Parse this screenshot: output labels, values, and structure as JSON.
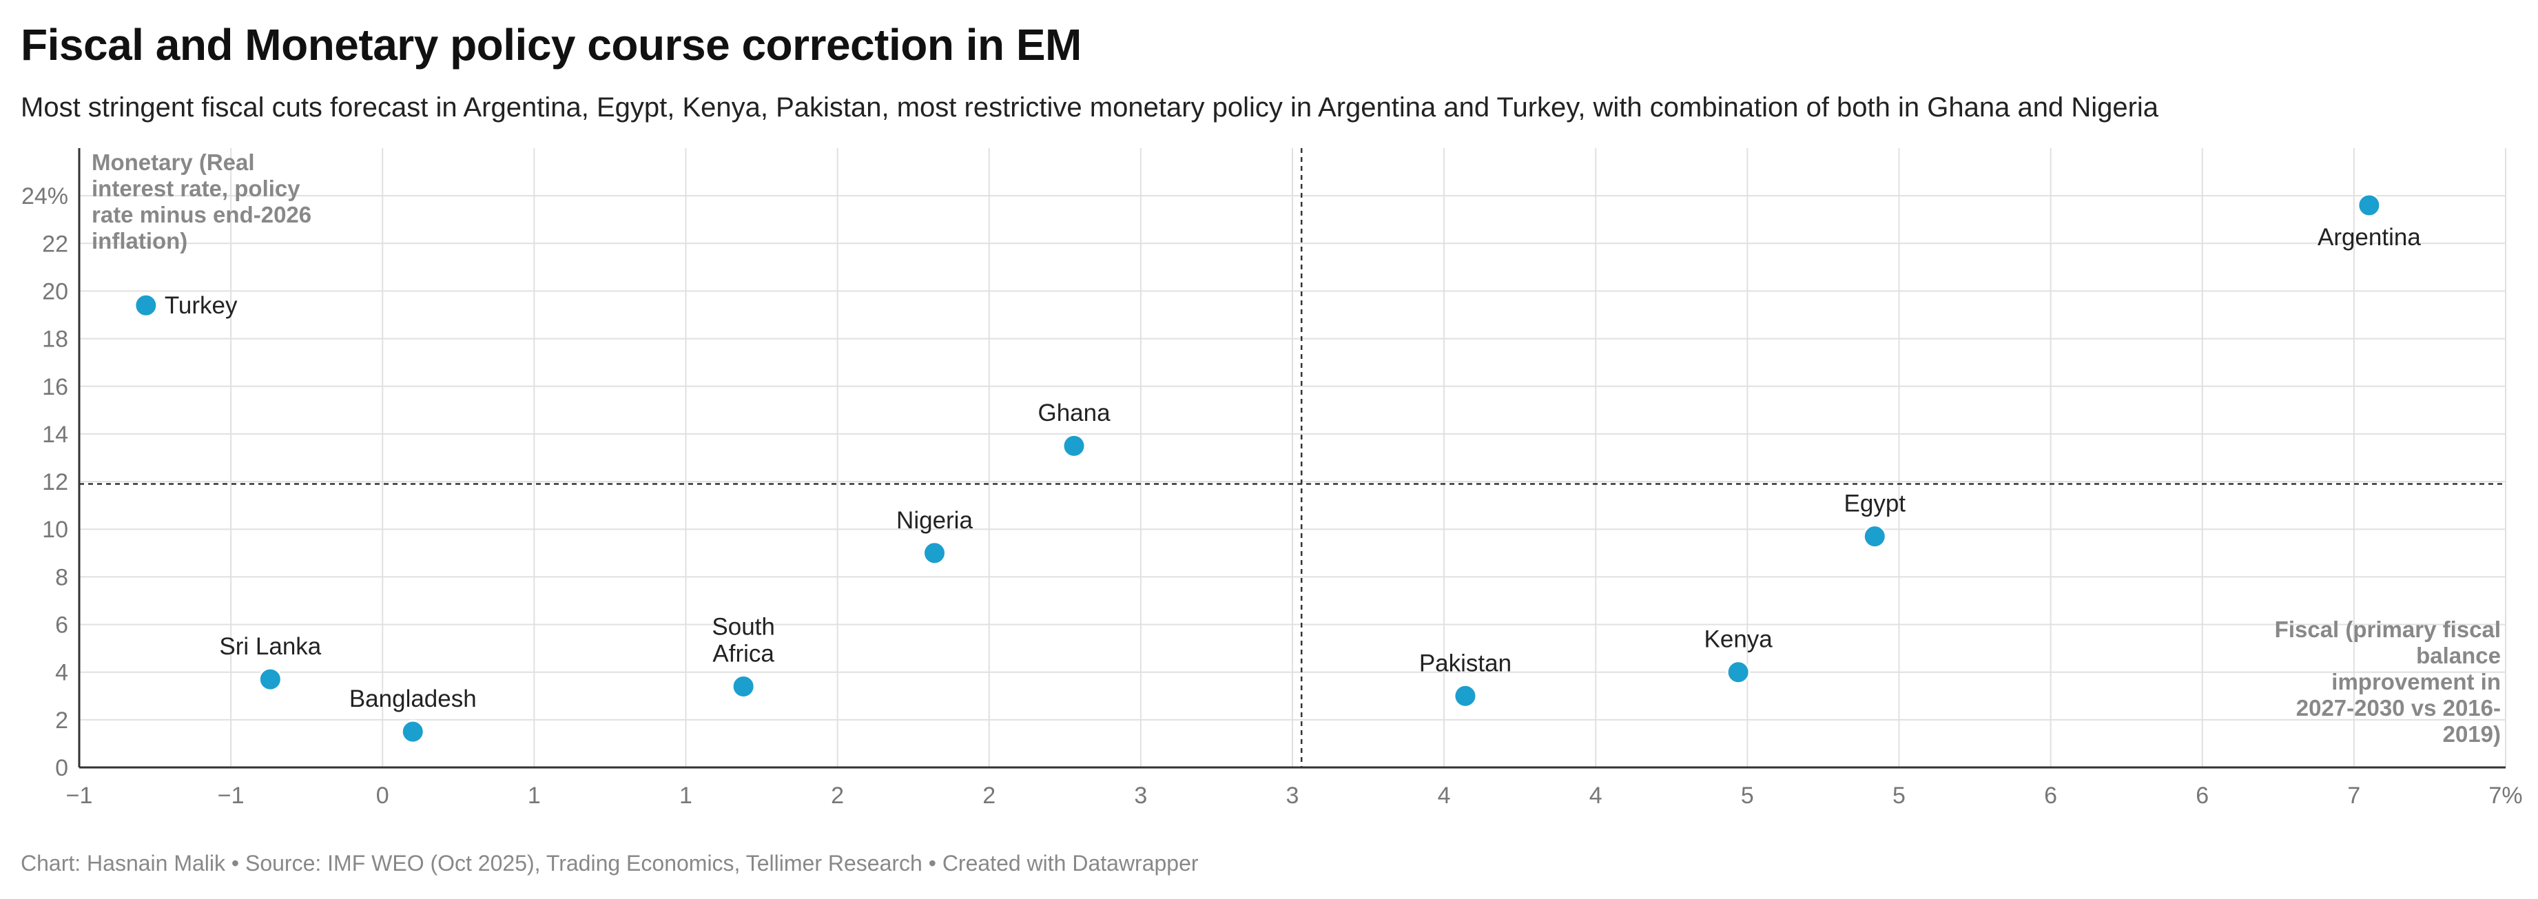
{
  "title": "Fiscal and Monetary policy course correction in EM",
  "subtitle": "Most stringent fiscal cuts forecast in Argentina, Egypt, Kenya, Pakistan, most restrictive monetary policy in Argentina and Turkey, with combination of both in Ghana and Nigeria",
  "footer": "Chart: Hasnain Malik • Source: IMF WEO (Oct 2025), Trading Economics, Tellimer Research • Created with Datawrapper",
  "colors": {
    "point": "#1b9fce",
    "grid": "#e0e0e0",
    "axis": "#333333",
    "reference": "#333333"
  },
  "chart_data": {
    "type": "scatter",
    "xlim": [
      -1,
      7
    ],
    "ylim": [
      0,
      26
    ],
    "x_ticks": [
      -1,
      -0.5,
      0,
      0.5,
      1,
      1.5,
      2,
      2.5,
      3,
      3.5,
      4,
      4.5,
      5,
      5.5,
      6,
      6.5,
      7
    ],
    "x_tick_labels": [
      "−1",
      "−1",
      "0",
      "1",
      "1",
      "2",
      "2",
      "3",
      "3",
      "4",
      "4",
      "5",
      "5",
      "6",
      "6",
      "7",
      "7%"
    ],
    "y_ticks": [
      0,
      2,
      4,
      6,
      8,
      10,
      12,
      14,
      16,
      18,
      20,
      22,
      24
    ],
    "y_tick_labels": [
      "0",
      "2",
      "4",
      "6",
      "8",
      "10",
      "12",
      "14",
      "16",
      "18",
      "20",
      "22",
      "24%"
    ],
    "xlabel_lines": [
      "Fiscal (primary fiscal",
      "balance",
      "improvement in",
      "2027-2030 vs 2016-",
      "2019)"
    ],
    "ylabel_lines": [
      "Monetary (Real",
      "interest rate, policy",
      "rate minus end-2026",
      "inflation)"
    ],
    "reference_lines": {
      "x": 3.03,
      "y": 11.9
    },
    "grid": true,
    "points": [
      {
        "label": "Argentina",
        "x": 6.55,
        "y": 23.6,
        "label_pos": "below"
      },
      {
        "label": "Turkey",
        "x": -0.78,
        "y": 19.4,
        "label_pos": "right"
      },
      {
        "label": "Ghana",
        "x": 2.28,
        "y": 13.5,
        "label_pos": "above"
      },
      {
        "label": "Nigeria",
        "x": 1.82,
        "y": 9.0,
        "label_pos": "above"
      },
      {
        "label": "Egypt",
        "x": 4.92,
        "y": 9.7,
        "label_pos": "above"
      },
      {
        "label": "Kenya",
        "x": 4.47,
        "y": 4.0,
        "label_pos": "above"
      },
      {
        "label": "Pakistan",
        "x": 3.57,
        "y": 3.0,
        "label_pos": "above"
      },
      {
        "label": "Sri Lanka",
        "x": -0.37,
        "y": 3.7,
        "label_pos": "above"
      },
      {
        "label": "Bangladesh",
        "x": 0.1,
        "y": 1.5,
        "label_pos": "above"
      },
      {
        "label": "South Africa",
        "label_lines": [
          "South",
          "Africa"
        ],
        "x": 1.19,
        "y": 3.4,
        "label_pos": "above"
      }
    ]
  }
}
